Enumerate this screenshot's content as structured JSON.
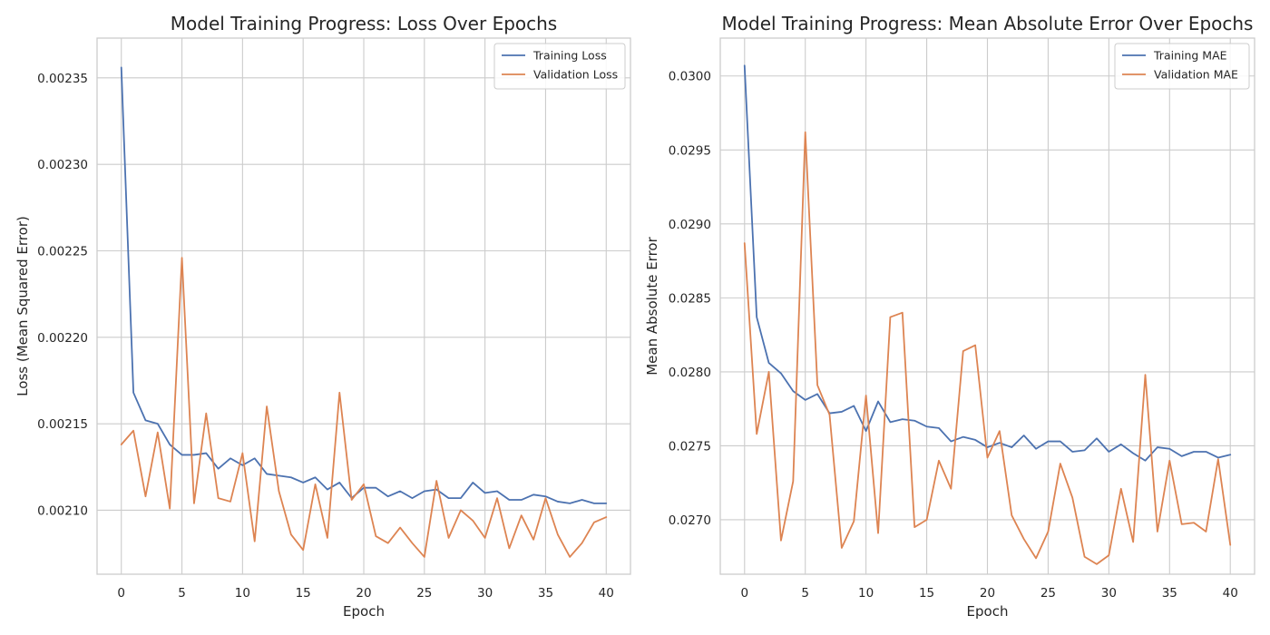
{
  "colors": {
    "training": "#4c72b0",
    "validation": "#dd8452"
  },
  "chart_data": [
    {
      "type": "line",
      "title": "Model Training Progress: Loss Over Epochs",
      "xlabel": "Epoch",
      "ylabel": "Loss (Mean Squared Error)",
      "xlim": [
        -2,
        42
      ],
      "ylim": [
        0.002063,
        0.002373
      ],
      "xticks": [
        0,
        5,
        10,
        15,
        20,
        25,
        30,
        35,
        40
      ],
      "xtick_labels": [
        "0",
        "5",
        "10",
        "15",
        "20",
        "25",
        "30",
        "35",
        "40"
      ],
      "yticks": [
        0.0021,
        0.00215,
        0.0022,
        0.00225,
        0.0023,
        0.00235
      ],
      "ytick_labels": [
        "0.00210",
        "0.00215",
        "0.00220",
        "0.00225",
        "0.00230",
        "0.00235"
      ],
      "grid": true,
      "legend": "top-right",
      "x": [
        0,
        1,
        2,
        3,
        4,
        5,
        6,
        7,
        8,
        9,
        10,
        11,
        12,
        13,
        14,
        15,
        16,
        17,
        18,
        19,
        20,
        21,
        22,
        23,
        24,
        25,
        26,
        27,
        28,
        29,
        30,
        31,
        32,
        33,
        34,
        35,
        36,
        37,
        38,
        39,
        40
      ],
      "series": [
        {
          "name": "Training Loss",
          "values": [
            0.002356,
            0.002168,
            0.002152,
            0.00215,
            0.002138,
            0.002132,
            0.002132,
            0.002133,
            0.002124,
            0.00213,
            0.002126,
            0.00213,
            0.002121,
            0.00212,
            0.002119,
            0.002116,
            0.002119,
            0.002112,
            0.002116,
            0.002107,
            0.002113,
            0.002113,
            0.002108,
            0.002111,
            0.002107,
            0.002111,
            0.002112,
            0.002107,
            0.002107,
            0.002116,
            0.00211,
            0.002111,
            0.002106,
            0.002106,
            0.002109,
            0.002108,
            0.002105,
            0.002104,
            0.002106,
            0.002104,
            0.002104
          ]
        },
        {
          "name": "Validation Loss",
          "values": [
            0.002138,
            0.002146,
            0.002108,
            0.002145,
            0.002101,
            0.002246,
            0.002104,
            0.002156,
            0.002107,
            0.002105,
            0.002133,
            0.002082,
            0.00216,
            0.002111,
            0.002086,
            0.002077,
            0.002115,
            0.002084,
            0.002168,
            0.002106,
            0.002115,
            0.002085,
            0.002081,
            0.00209,
            0.002081,
            0.002073,
            0.002117,
            0.002084,
            0.0021,
            0.002094,
            0.002084,
            0.002107,
            0.002078,
            0.002097,
            0.002083,
            0.002107,
            0.002086,
            0.002073,
            0.002081,
            0.002093,
            0.002096
          ]
        }
      ]
    },
    {
      "type": "line",
      "title": "Model Training Progress: Mean Absolute Error Over Epochs",
      "xlabel": "Epoch",
      "ylabel": "Mean Absolute Error",
      "xlim": [
        -2,
        42
      ],
      "ylim": [
        0.026632,
        0.030256
      ],
      "xticks": [
        0,
        5,
        10,
        15,
        20,
        25,
        30,
        35,
        40
      ],
      "xtick_labels": [
        "0",
        "5",
        "10",
        "15",
        "20",
        "25",
        "30",
        "35",
        "40"
      ],
      "yticks": [
        0.027,
        0.0275,
        0.028,
        0.0285,
        0.029,
        0.0295,
        0.03
      ],
      "ytick_labels": [
        "0.0270",
        "0.0275",
        "0.0280",
        "0.0285",
        "0.0290",
        "0.0295",
        "0.0300"
      ],
      "grid": true,
      "legend": "top-right",
      "x": [
        0,
        1,
        2,
        3,
        4,
        5,
        6,
        7,
        8,
        9,
        10,
        11,
        12,
        13,
        14,
        15,
        16,
        17,
        18,
        19,
        20,
        21,
        22,
        23,
        24,
        25,
        26,
        27,
        28,
        29,
        30,
        31,
        32,
        33,
        34,
        35,
        36,
        37,
        38,
        39,
        40
      ],
      "series": [
        {
          "name": "Training MAE",
          "values": [
            0.03007,
            0.02837,
            0.02806,
            0.02799,
            0.02787,
            0.02781,
            0.02785,
            0.02772,
            0.02773,
            0.02777,
            0.0276,
            0.0278,
            0.02766,
            0.02768,
            0.02767,
            0.02763,
            0.02762,
            0.02753,
            0.02756,
            0.02754,
            0.02749,
            0.02752,
            0.02749,
            0.02757,
            0.02748,
            0.02753,
            0.02753,
            0.02746,
            0.02747,
            0.02755,
            0.02746,
            0.02751,
            0.02745,
            0.0274,
            0.02749,
            0.02748,
            0.02743,
            0.02746,
            0.02746,
            0.02742,
            0.02744
          ]
        },
        {
          "name": "Validation MAE",
          "values": [
            0.02887,
            0.02758,
            0.028,
            0.02686,
            0.02726,
            0.02962,
            0.02791,
            0.02771,
            0.02681,
            0.02699,
            0.02784,
            0.02691,
            0.02837,
            0.0284,
            0.02695,
            0.027,
            0.0274,
            0.02721,
            0.02814,
            0.02818,
            0.02742,
            0.0276,
            0.02703,
            0.02687,
            0.02674,
            0.02692,
            0.02738,
            0.02715,
            0.02675,
            0.0267,
            0.02676,
            0.02721,
            0.02685,
            0.02798,
            0.02692,
            0.0274,
            0.02697,
            0.02698,
            0.02692,
            0.02741,
            0.02683
          ]
        }
      ]
    }
  ]
}
